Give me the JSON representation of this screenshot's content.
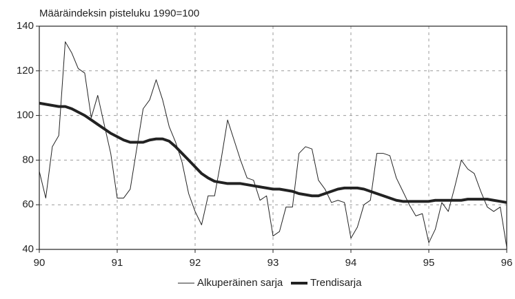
{
  "chart_data": {
    "type": "line",
    "title": "Määräindeksin pisteluku 1990=100",
    "x": [
      90,
      90.083,
      90.167,
      90.25,
      90.333,
      90.417,
      90.5,
      90.583,
      90.667,
      90.75,
      90.833,
      90.917,
      91,
      91.083,
      91.167,
      91.25,
      91.333,
      91.417,
      91.5,
      91.583,
      91.667,
      91.75,
      91.833,
      91.917,
      92,
      92.083,
      92.167,
      92.25,
      92.333,
      92.417,
      92.5,
      92.583,
      92.667,
      92.75,
      92.833,
      92.917,
      93,
      93.083,
      93.167,
      93.25,
      93.333,
      93.417,
      93.5,
      93.583,
      93.667,
      93.75,
      93.833,
      93.917,
      94,
      94.083,
      94.167,
      94.25,
      94.333,
      94.417,
      94.5,
      94.583,
      94.667,
      94.75,
      94.833,
      94.917,
      95,
      95.083,
      95.167,
      95.25,
      95.333,
      95.417,
      95.5,
      95.583,
      95.667,
      95.75,
      95.833,
      95.917,
      96
    ],
    "series": [
      {
        "name": "Alkuperäinen sarja",
        "color": "#222222",
        "line_width": 1,
        "values": [
          75,
          63,
          86,
          91,
          133,
          128,
          121,
          119,
          99,
          109,
          96,
          83,
          63,
          63,
          67,
          85,
          103,
          107,
          116,
          107,
          95,
          88,
          79,
          65,
          57,
          51,
          64,
          64,
          80,
          98,
          89,
          80,
          72,
          71,
          62,
          64,
          46,
          48,
          59,
          59,
          83,
          86,
          85,
          71,
          67,
          61,
          62,
          61,
          45,
          50,
          60,
          62,
          83,
          83,
          82,
          72,
          66,
          60,
          55,
          56,
          43,
          49,
          61,
          57,
          68,
          80,
          76,
          74,
          66,
          59,
          57,
          59,
          41
        ]
      },
      {
        "name": "Trendisarja",
        "color": "#222222",
        "line_width": 4,
        "values": [
          105.5,
          105,
          104.5,
          104,
          104,
          103,
          101.5,
          100,
          98,
          96,
          94,
          92,
          90.5,
          89,
          88,
          88,
          88,
          89,
          89.5,
          89.5,
          88.5,
          86,
          83,
          80,
          77,
          74,
          72,
          70.5,
          70,
          69.5,
          69.5,
          69.5,
          69,
          68.5,
          68,
          67.5,
          67,
          67,
          66.5,
          66,
          65,
          64.5,
          64,
          64,
          65,
          66,
          67,
          67.5,
          67.5,
          67.5,
          67,
          66,
          65,
          64,
          63,
          62,
          61.5,
          61.5,
          61.5,
          61.5,
          61.5,
          62,
          62,
          62,
          62,
          62,
          62.5,
          62.5,
          62.5,
          62.5,
          62,
          61.5,
          61
        ]
      }
    ],
    "xlim": [
      90,
      96
    ],
    "xticks": [
      90,
      91,
      92,
      93,
      94,
      95,
      96
    ],
    "ylim": [
      40,
      140
    ],
    "yticks": [
      40,
      60,
      80,
      100,
      120,
      140
    ],
    "grid": true,
    "legend": "bottom"
  }
}
